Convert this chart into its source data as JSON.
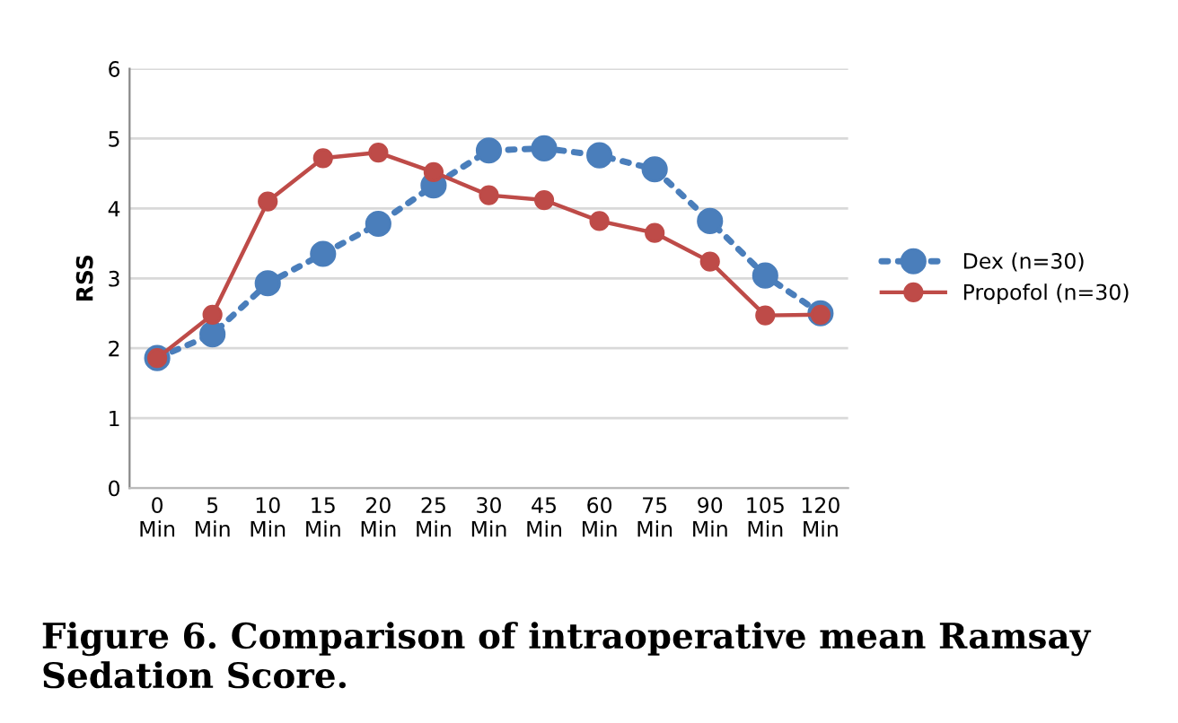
{
  "chart_data": {
    "type": "line",
    "title": "Figure 6. Comparison of intraoperative mean Ramsay Sedation Score.",
    "ylabel": "RSS",
    "categories": [
      "0\nMin",
      "5\nMin",
      "10\nMin",
      "15\nMin",
      "20\nMin",
      "25\nMin",
      "30\nMin",
      "45\nMin",
      "60\nMin",
      "75\nMin",
      "90\nMin",
      "105\nMin",
      "120\nMin"
    ],
    "series": [
      {
        "name": "Dex (n=30)",
        "color": "#4a7ebb",
        "line_style": "dotted",
        "values": [
          1.86,
          2.2,
          2.93,
          3.35,
          3.78,
          4.33,
          4.83,
          4.86,
          4.76,
          4.56,
          3.82,
          3.04,
          2.5
        ]
      },
      {
        "name": "Propofol (n=30)",
        "color": "#be4b48",
        "line_style": "solid",
        "values": [
          1.86,
          2.48,
          4.1,
          4.72,
          4.8,
          4.52,
          4.19,
          4.12,
          3.82,
          3.65,
          3.24,
          2.47,
          2.48
        ]
      }
    ],
    "ylim": [
      0,
      6
    ],
    "yticks": [
      0,
      1,
      2,
      3,
      4,
      5,
      6
    ],
    "grid": "y",
    "legend": "right",
    "marker": "circle"
  }
}
